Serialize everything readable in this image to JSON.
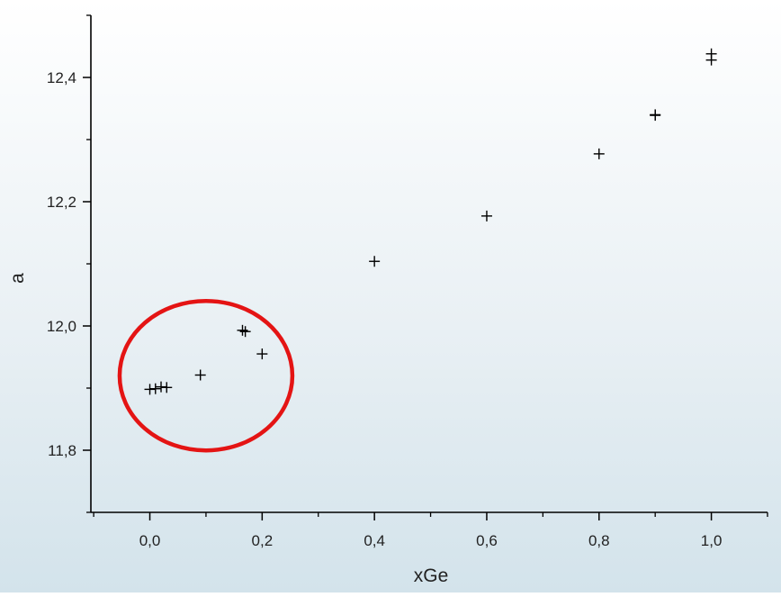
{
  "chart_data": {
    "type": "scatter",
    "title": "",
    "xlabel": "xGe",
    "ylabel": "a",
    "xlim": [
      -0.105,
      1.1
    ],
    "ylim": [
      11.7,
      12.5
    ],
    "x_ticks": [
      0.0,
      0.2,
      0.4,
      0.6,
      0.8,
      1.0
    ],
    "x_tick_labels": [
      "0,0",
      "0,2",
      "0,4",
      "0,6",
      "0,8",
      "1,0"
    ],
    "y_ticks": [
      11.8,
      12.0,
      12.2,
      12.4
    ],
    "y_tick_labels": [
      "11,8",
      "12,0",
      "12,2",
      "12,4"
    ],
    "x_minor_ticks": [
      -0.1,
      0.1,
      0.3,
      0.5,
      0.7,
      0.9,
      1.1
    ],
    "y_minor_ticks": [
      11.7,
      11.9,
      12.1,
      12.3,
      12.5
    ],
    "grid": false,
    "marker": "plus",
    "marker_color": "#000000",
    "series": [
      {
        "x": [
          0.0,
          0.01,
          0.02,
          0.03,
          0.09,
          0.165,
          0.17,
          0.2,
          0.4,
          0.6,
          0.8,
          0.9,
          0.9,
          1.0,
          1.0
        ],
        "y": [
          11.898,
          11.899,
          11.902,
          11.901,
          11.921,
          11.993,
          11.991,
          11.955,
          12.104,
          12.177,
          12.277,
          12.339,
          12.34,
          12.438,
          12.428
        ]
      }
    ],
    "highlight": {
      "shape": "ellipse",
      "color": "#e41414",
      "center": [
        0.1,
        11.92
      ]
    }
  }
}
